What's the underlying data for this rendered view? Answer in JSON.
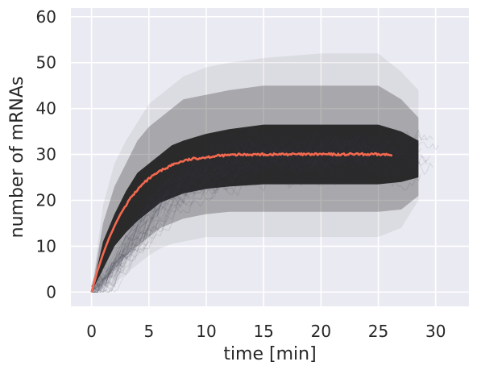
{
  "chart_data": {
    "type": "line",
    "title": "",
    "xlabel": "time [min]",
    "ylabel": "number of mRNAs",
    "xlim": [
      -1.8,
      32.9
    ],
    "ylim": [
      -3.1,
      61.9
    ],
    "x_ticks": [
      0,
      5,
      10,
      15,
      20,
      25,
      30
    ],
    "y_ticks": [
      0,
      10,
      20,
      30,
      40,
      50,
      60
    ],
    "grid": true,
    "legend": "none",
    "colors": {
      "background": "#eaeaf2",
      "grid": "#ffffff",
      "trajectories": "#1f1f1f",
      "mean_line": "#f4694f",
      "text": "#262626"
    },
    "series": [
      {
        "role": "mean",
        "x": [
          0,
          0.5,
          1,
          1.5,
          2,
          2.5,
          3,
          3.5,
          4,
          4.5,
          5,
          6,
          7,
          8,
          9,
          10,
          11,
          12,
          13,
          14,
          15,
          16,
          17,
          18,
          19,
          20,
          21,
          22,
          23,
          24,
          25,
          26.3
        ],
        "y": [
          0,
          4.5,
          8.3,
          11.6,
          14.4,
          16.9,
          19.0,
          20.8,
          22.3,
          23.6,
          24.7,
          26.4,
          27.7,
          28.6,
          29.1,
          29.4,
          29.7,
          29.85,
          29.95,
          30.0,
          30.0,
          30.0,
          30.05,
          30.0,
          30.0,
          30.05,
          30.0,
          30.0,
          30.05,
          30.0,
          30.0,
          29.9
        ]
      },
      {
        "role": "trajectory-band",
        "x": [
          0,
          1,
          2,
          3,
          4,
          5,
          6,
          7,
          8,
          10,
          12,
          15,
          20,
          25,
          27,
          28.5
        ],
        "y_inner_low": [
          0,
          5,
          10,
          13,
          15.5,
          17.5,
          19.5,
          20.5,
          21.5,
          22.5,
          23,
          23.5,
          23.5,
          23.5,
          24,
          25
        ],
        "y_inner_high": [
          0,
          11,
          17,
          22,
          26,
          28,
          30,
          32,
          33,
          34.5,
          35.5,
          36.5,
          36.5,
          36.5,
          35,
          33
        ],
        "y_outer_low": [
          0,
          2,
          5,
          8,
          10,
          12,
          14,
          15,
          16,
          17,
          17.5,
          17.5,
          17.5,
          17.5,
          18,
          21
        ],
        "y_outer_high": [
          0,
          15,
          23,
          28,
          33,
          36,
          38,
          40,
          42,
          43,
          44,
          45,
          45,
          45,
          42,
          38
        ],
        "y_extreme_low": [
          0,
          0.5,
          2,
          4,
          6,
          8,
          9.5,
          10.5,
          11,
          12,
          12,
          12,
          12,
          12,
          14,
          20
        ],
        "y_extreme_high": [
          0,
          19,
          28,
          33,
          37,
          41,
          43,
          45,
          47,
          49,
          50,
          51,
          52,
          52,
          48,
          44
        ]
      }
    ]
  }
}
